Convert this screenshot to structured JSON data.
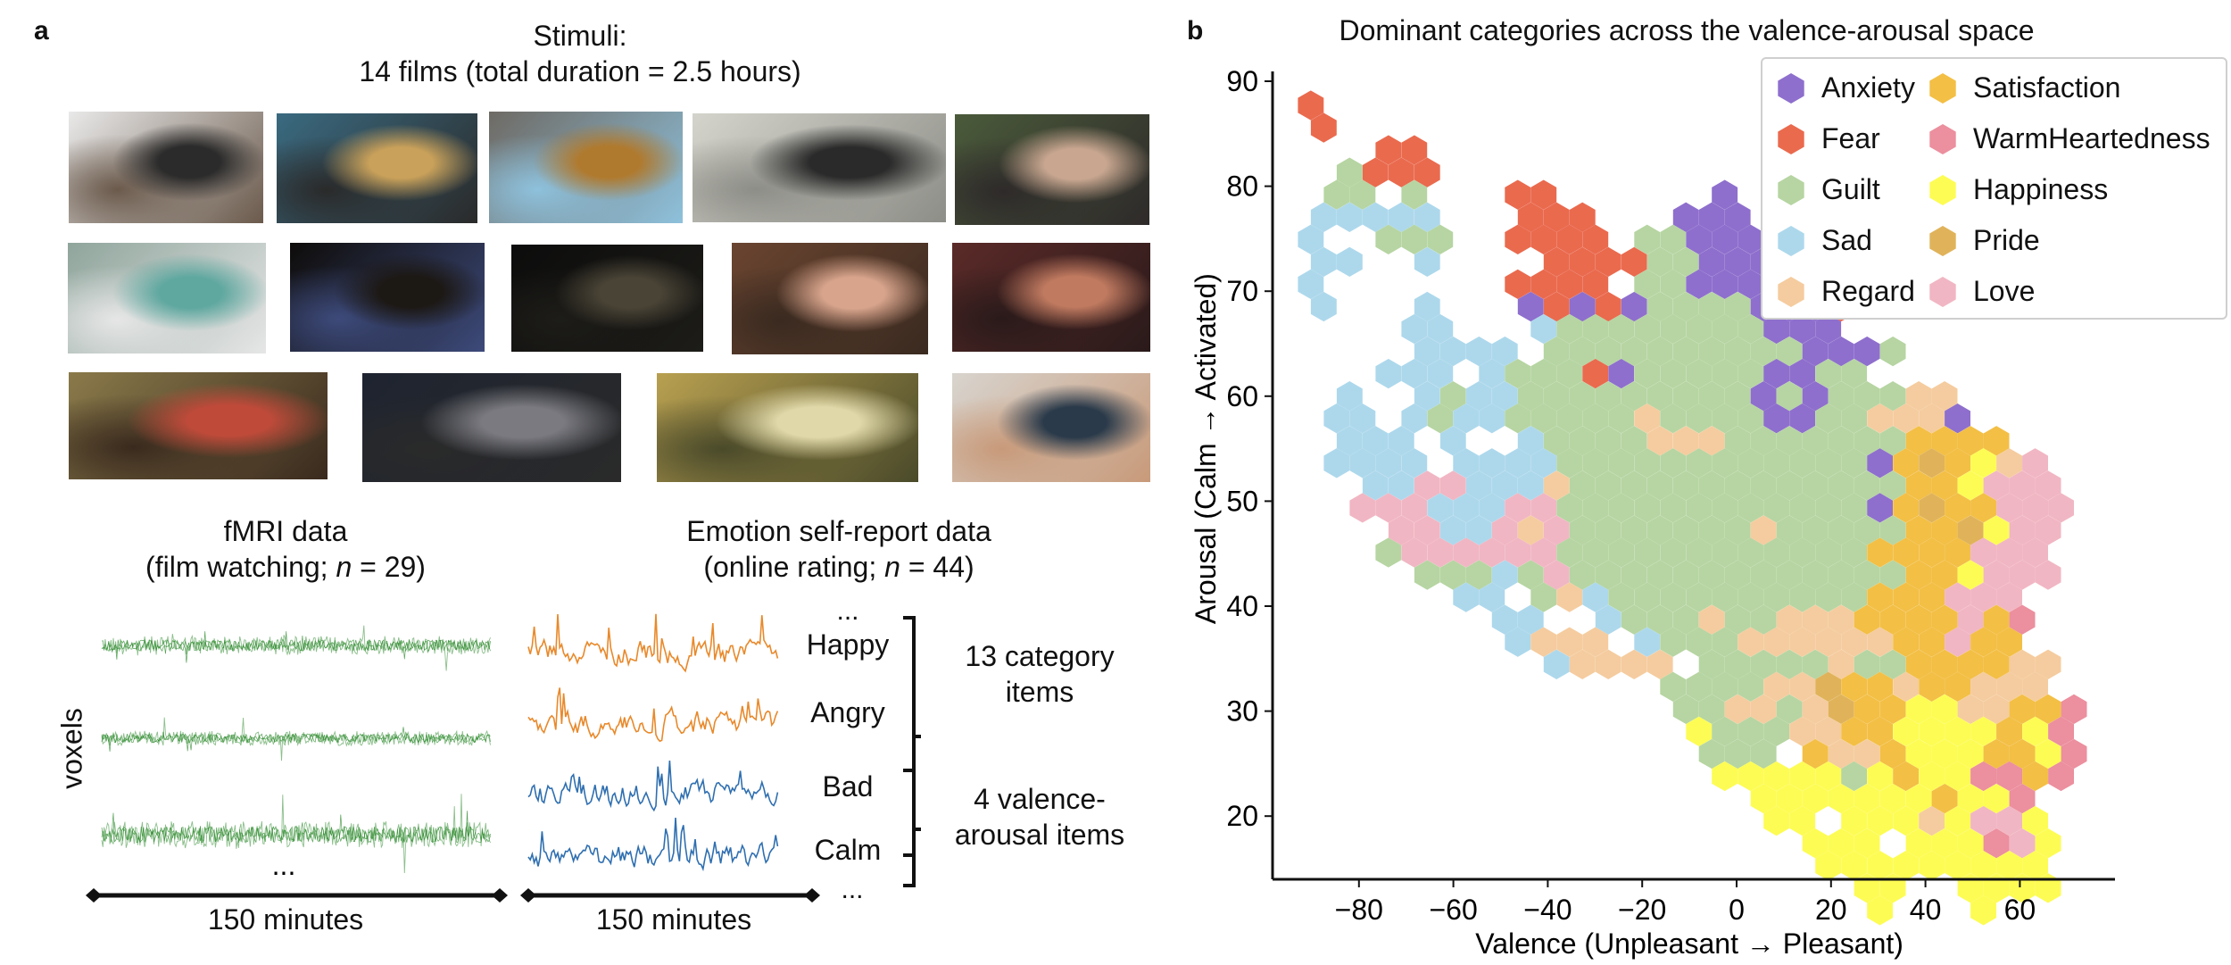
{
  "panel_a": {
    "label": "a",
    "stimuli_title_1": "Stimuli:",
    "stimuli_title_2": "14 films (total duration = 2.5 hours)",
    "film_frames": [
      {
        "colors": [
          "#e9e9e9",
          "#2b2b2b",
          "#6b5a4c"
        ]
      },
      {
        "colors": [
          "#3a6a80",
          "#c9a15a",
          "#2a2a2a"
        ]
      },
      {
        "colors": [
          "#6e6a64",
          "#b07a2e",
          "#8ec1dc"
        ]
      },
      {
        "colors": [
          "#d4d4cc",
          "#2a2a2a",
          "#8e8e88"
        ]
      },
      {
        "colors": [
          "#4a5a3a",
          "#c8a690",
          "#2e2a2a"
        ]
      },
      {
        "colors": [
          "#8fa59c",
          "#5fa8a0",
          "#e6e6e6"
        ]
      },
      {
        "colors": [
          "#0e0c0a",
          "#1c1814",
          "#3d4a7a"
        ]
      },
      {
        "colors": [
          "#0c0c0c",
          "#4a4436",
          "#1d1c18"
        ]
      },
      {
        "colors": [
          "#6a4430",
          "#d8a48c",
          "#3a2a20"
        ]
      },
      {
        "colors": [
          "#5a2a28",
          "#c07a60",
          "#2a1a1a"
        ]
      },
      {
        "colors": [
          "#8a7a4a",
          "#c04a3a",
          "#3a2a1e"
        ]
      },
      {
        "colors": [
          "#1e2430",
          "#7a7a80",
          "#2a2a2a"
        ]
      },
      {
        "colors": [
          "#b8a050",
          "#e0d8a8",
          "#4a4a2a"
        ]
      },
      {
        "colors": [
          "#d8d4ce",
          "#2a3a4a",
          "#c89a7a"
        ]
      }
    ],
    "fmri_title_1": "fMRI data",
    "fmri_title_2_pre": "(film watching; ",
    "fmri_title_2_n": "n",
    "fmri_title_2_post": " = 29)",
    "voxels_label": "voxels",
    "fmri_ellipsis": "...",
    "fmri_duration": "150 minutes",
    "report_title_1": "Emotion self-report data",
    "report_title_2_pre": "(online rating; ",
    "report_title_2_n": "n",
    "report_title_2_post": " = 44)",
    "report_duration": "150 minutes",
    "items_top_ellipsis": "...",
    "items_bottom_ellipsis": "...",
    "items": [
      {
        "label": "Happy",
        "color": "#e8892b"
      },
      {
        "label": "Angry",
        "color": "#e8892b"
      },
      {
        "label": "Bad",
        "color": "#2f6fb0"
      },
      {
        "label": "Calm",
        "color": "#2f6fb0"
      }
    ],
    "group_category_1": "13 category",
    "group_category_2": "items",
    "group_va_1": "4 valence-",
    "group_va_2": "arousal items",
    "fmri_color": "#2e8b2e"
  },
  "chart_data": {
    "type": "heatmap",
    "subtype": "hexbin",
    "panel_label": "b",
    "title": "Dominant categories across the valence-arousal space",
    "xlabel": "Valence (Unpleasant → Pleasant)",
    "ylabel": "Arousal (Calm → Activated)",
    "xlim": [
      -100,
      80
    ],
    "ylim": [
      14,
      92
    ],
    "xticks": [
      -80,
      -60,
      -40,
      -20,
      0,
      20,
      40,
      60
    ],
    "xtick_labels": [
      "−80",
      "−60",
      "−40",
      "−20",
      "0",
      "20",
      "40",
      "60"
    ],
    "yticks": [
      20,
      30,
      40,
      50,
      60,
      70,
      80,
      90
    ],
    "ytick_labels": [
      "20",
      "30",
      "40",
      "50",
      "60",
      "70",
      "80",
      "90"
    ],
    "legend_position": "top-right",
    "legend": [
      {
        "code": "A",
        "name": "Anxiety",
        "color": "#8e6fcd"
      },
      {
        "code": "F",
        "name": "Fear",
        "color": "#ea6a4e"
      },
      {
        "code": "G",
        "name": "Guilt",
        "color": "#b6d5a2"
      },
      {
        "code": "S",
        "name": "Sad",
        "color": "#add8ec"
      },
      {
        "code": "R",
        "name": "Regard",
        "color": "#f5cc9f"
      },
      {
        "code": "T",
        "name": "Satisfaction",
        "color": "#f3bf45"
      },
      {
        "code": "W",
        "name": "WarmHeartedness",
        "color": "#ec8f9e"
      },
      {
        "code": "H",
        "name": "Happiness",
        "color": "#fdfc54"
      },
      {
        "code": "P",
        "name": "Pride",
        "color": "#e0b35a"
      },
      {
        "code": "L",
        "name": "Love",
        "color": "#f1b6c3"
      }
    ],
    "hex_grid": {
      "valence_origin": -90.2,
      "arousal_origin": 87.7,
      "valence_step": 5.48,
      "arousal_step": 2.13,
      "odd_row_valence_shift": 2.74,
      "rows": [
        "F.............................",
        "F.............................",
        "...FF.........................",
        ".GFFF.........................",
        ".GG.G...FF......A.............",
        "SSSSS...FFF...AAA.............",
        "S..GGG..FFFF.GGAAAA...........",
        "SS..S....FFFFGGAAAAA..........",
        "S.......FFFF.GGAAAA.A.........",
        "S...S...AFAFAGGGGAAAF.........",
        "....SS...SGGGGGGGGAAA.........",
        "....SSSS.GGGGGGGGGGAAAG.......",
        "...SSS.SGGGFAGGGGGAAGG........",
        ".S..SGSSGGGGGGGGGAGAGGGRR.....",
        ".SS.SGSSGGGGGRGGGGAAGGRRRA....",
        ".SSS.S..SGGGGRRRGGGGGGGTTTT...",
        ".SSSS.SSSSGGGGGGGGGGGGATPTHRL.",
        "..SSLLSSSRGGGGGGGGGGGGGTTHLLL.",
        "..LLLSSSLLGGGGGGGGGGGGATPTTLLL",
        "...LLSSLRLGGGGGGGRGGGGGTTPHLL.",
        "...GLLLLLLGGGGGGGGGGGGTTTTLLL.",
        "....GGGSGLGGGGGGGGGGGGGTTHLLL.",
        "......SS.GRSGGGGGGGGGGTTTLLL..",
        ".......SS..SGGGRGGRRRTTTTLTW..",
        "........SRRR.SGGGRRRRRRTTLTT..",
        ".........SRRRR.GGGGGRGGTTTTRR.",
        "..............GGGGRRPTTRTTRRR.",
        "..............GGRRGRPTTHHRRTTW",
        "...............HGGGRRTTHHHHTHW",
        "...............GGG.TRRTHHHTTHW",
        "................HHHHHGHTHHWWTW",
        ".................HHHHHHHTHHW..",
        "..................HH.HHHRHLLH.",
        "...................HHH.HHHWLH.",
        "....................HHHHHHHHH.",
        ".....................HH..HHHH.",
        "......................H...H..."
      ]
    }
  }
}
